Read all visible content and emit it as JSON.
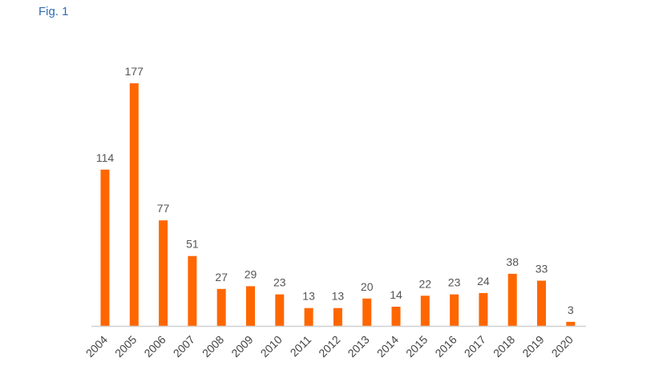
{
  "figure": {
    "label": "Fig. 1"
  },
  "chart_data": {
    "type": "bar",
    "categories": [
      "2004",
      "2005",
      "2006",
      "2007",
      "2008",
      "2009",
      "2010",
      "2011",
      "2012",
      "2013",
      "2014",
      "2015",
      "2016",
      "2017",
      "2018",
      "2019",
      "2020"
    ],
    "values": [
      114,
      177,
      77,
      51,
      27,
      29,
      23,
      13,
      13,
      20,
      14,
      22,
      23,
      24,
      38,
      33,
      3
    ],
    "title": "",
    "xlabel": "",
    "ylabel": "",
    "ylim": [
      0,
      177
    ],
    "grid": false,
    "legend": "none",
    "data_labels": true,
    "bar_color": "#ff6600",
    "axis_color": "#d0d0d0"
  }
}
